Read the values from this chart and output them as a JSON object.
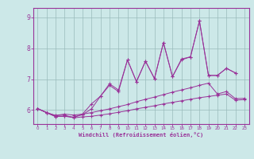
{
  "xlabel": "Windchill (Refroidissement éolien,°C)",
  "bg_color": "#cce8e8",
  "line_color": "#993399",
  "grid_color": "#99bbbb",
  "xlim": [
    -0.5,
    23.5
  ],
  "ylim": [
    5.55,
    9.3
  ],
  "yticks": [
    6,
    7,
    8,
    9
  ],
  "xticks": [
    0,
    1,
    2,
    3,
    4,
    5,
    6,
    7,
    8,
    9,
    10,
    11,
    12,
    13,
    14,
    15,
    16,
    17,
    18,
    19,
    20,
    21,
    22,
    23
  ],
  "line1": [
    6.05,
    5.92,
    5.82,
    5.84,
    5.75,
    5.78,
    5.8,
    5.84,
    5.88,
    5.93,
    5.98,
    6.04,
    6.09,
    6.14,
    6.2,
    6.25,
    6.3,
    6.35,
    6.4,
    6.44,
    6.48,
    6.52,
    6.32,
    6.34
  ],
  "line2": [
    6.05,
    5.92,
    5.83,
    5.87,
    5.84,
    5.87,
    5.92,
    5.98,
    6.04,
    6.11,
    6.18,
    6.27,
    6.35,
    6.42,
    6.5,
    6.58,
    6.65,
    6.72,
    6.8,
    6.87,
    6.52,
    6.6,
    6.37,
    6.38
  ],
  "line3": [
    6.05,
    5.92,
    5.79,
    5.8,
    5.77,
    5.85,
    6.04,
    6.45,
    6.8,
    6.6,
    7.62,
    6.92,
    7.58,
    7.02,
    8.18,
    7.08,
    7.62,
    7.72,
    8.88,
    7.12,
    7.12,
    7.35,
    7.2,
    null
  ],
  "line4": [
    6.05,
    5.92,
    5.79,
    5.8,
    5.77,
    5.87,
    6.2,
    6.45,
    6.85,
    6.65,
    7.62,
    6.92,
    7.58,
    7.02,
    8.18,
    7.08,
    7.65,
    7.72,
    8.88,
    7.12,
    7.12,
    7.35,
    7.2,
    null
  ]
}
